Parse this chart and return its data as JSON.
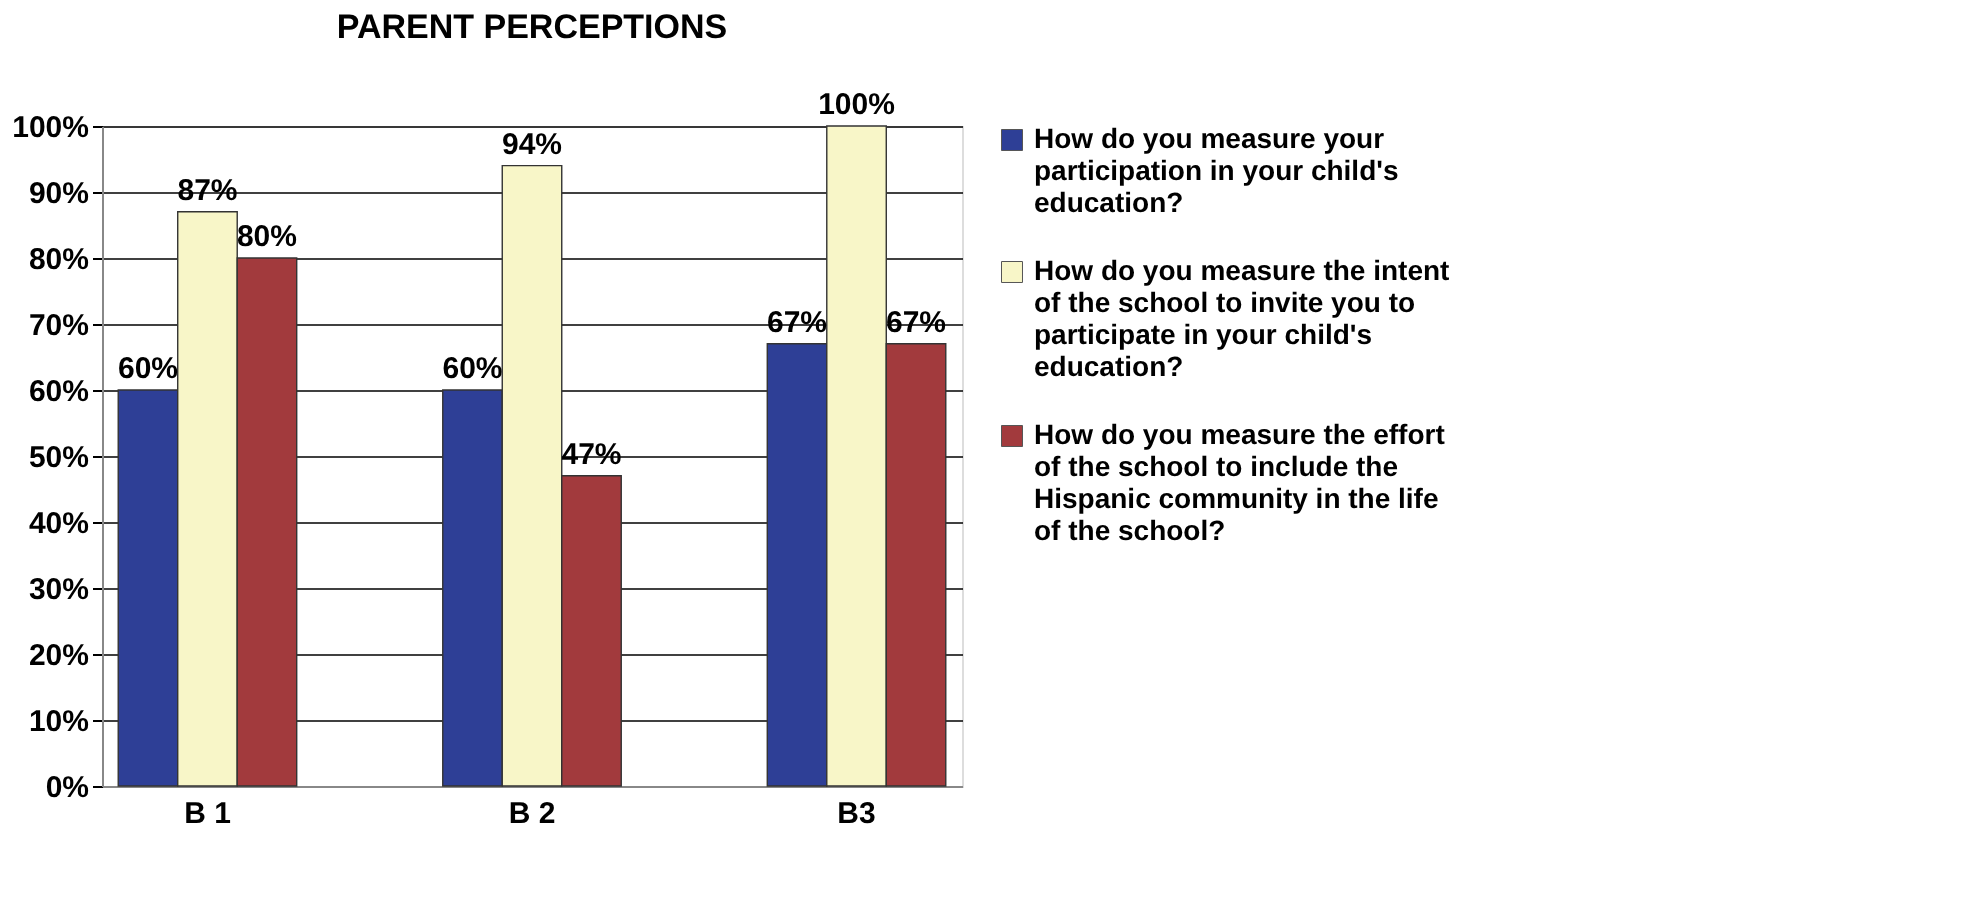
{
  "chart_data": {
    "type": "bar",
    "title": "PARENT PERCEPTIONS",
    "categories": [
      "B 1",
      "B 2",
      "B3"
    ],
    "series": [
      {
        "name": "How do you measure your participation in your child's education?",
        "color": "#2e3f96",
        "values": [
          60,
          60,
          67
        ],
        "value_labels": [
          "60%",
          "60%",
          "67%"
        ]
      },
      {
        "name": "How do you measure the intent of the school to invite you to participate in your child's education?",
        "color": "#f8f6c8",
        "values": [
          87,
          94,
          100
        ],
        "value_labels": [
          "87%",
          "94%",
          "100%"
        ]
      },
      {
        "name": "How do you measure the effort of the school to include the Hispanic community in the life of the school?",
        "color": "#a23a3d",
        "values": [
          80,
          47,
          67
        ],
        "value_labels": [
          "80%",
          "47%",
          "67%"
        ]
      }
    ],
    "ylim": [
      0,
      100
    ],
    "yticks": [
      {
        "value": 0,
        "label": "0%"
      },
      {
        "value": 10,
        "label": "10%"
      },
      {
        "value": 20,
        "label": "20%"
      },
      {
        "value": 30,
        "label": "30%"
      },
      {
        "value": 40,
        "label": "40%"
      },
      {
        "value": 50,
        "label": "50%"
      },
      {
        "value": 60,
        "label": "60%"
      },
      {
        "value": 70,
        "label": "70%"
      },
      {
        "value": 80,
        "label": "80%"
      },
      {
        "value": 90,
        "label": "90%"
      },
      {
        "value": 100,
        "label": "100%"
      }
    ],
    "grid": "y",
    "legend": "right"
  }
}
